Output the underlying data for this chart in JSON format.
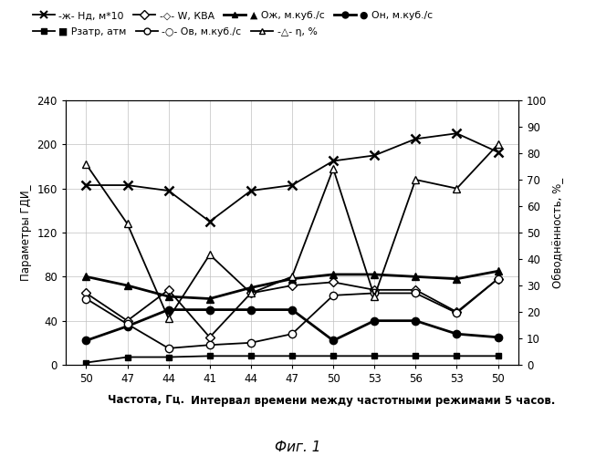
{
  "x_labels": [
    "50",
    "47",
    "44",
    "41",
    "44",
    "47",
    "50",
    "53",
    "56",
    "53",
    "50"
  ],
  "x_indices": [
    0,
    1,
    2,
    3,
    4,
    5,
    6,
    7,
    8,
    9,
    10
  ],
  "nd_m10": [
    163,
    163,
    158,
    130,
    158,
    163,
    185,
    190,
    205,
    210,
    193
  ],
  "W_kva": [
    65,
    40,
    68,
    25,
    65,
    72,
    75,
    68,
    68,
    48,
    78
  ],
  "Qzh": [
    80,
    72,
    62,
    60,
    70,
    78,
    82,
    82,
    80,
    78,
    85
  ],
  "Qn": [
    22,
    35,
    50,
    50,
    50,
    50,
    22,
    40,
    40,
    28,
    25
  ],
  "Rzatr": [
    2,
    7,
    7,
    8,
    8,
    8,
    8,
    8,
    8,
    8,
    8
  ],
  "Qv": [
    60,
    37,
    15,
    18,
    20,
    28,
    63,
    65,
    65,
    47,
    78
  ],
  "eta": [
    182,
    128,
    42,
    100,
    65,
    80,
    178,
    62,
    168,
    160,
    200
  ],
  "ylim_left": [
    0,
    240
  ],
  "ylim_right": [
    0,
    100
  ],
  "ylabel_left": "Параметры ГДИ_",
  "ylabel_right": "Обводнённость, %_",
  "xlabel_part1": "Частота, Гц.",
  "xlabel_part2": "Интервал времени между частотными режимами 5 часов.",
  "leg1_nd": "-ж- Нд, м*10",
  "leg1_W": "-◇- W, КВА",
  "leg1_Qzh": "▲ Ож, м.куб./с",
  "leg1_Qn": "● Он, м.куб./с",
  "leg2_Rzatr": "■ Рзатр, атм",
  "leg2_Qv": "-○- Ов, м.куб./с",
  "leg2_eta": "-△- η, %",
  "fig_title": "Фиг. 1",
  "background_color": "#ffffff",
  "grid_color": "#c0c0c0"
}
